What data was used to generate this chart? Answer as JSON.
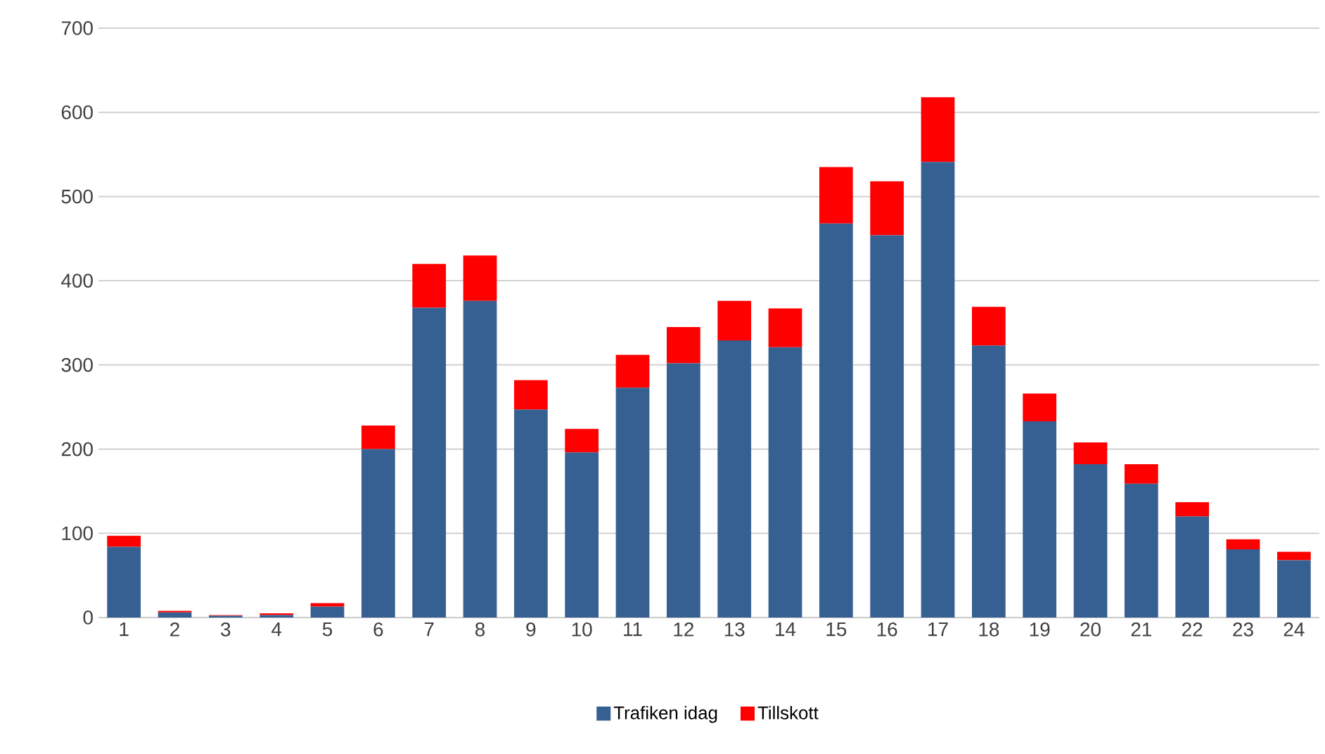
{
  "chart_data": {
    "type": "bar",
    "stacked": true,
    "categories": [
      "1",
      "2",
      "3",
      "4",
      "5",
      "6",
      "7",
      "8",
      "9",
      "10",
      "11",
      "12",
      "13",
      "14",
      "15",
      "16",
      "17",
      "18",
      "19",
      "20",
      "21",
      "22",
      "23",
      "24"
    ],
    "series": [
      {
        "name": "Trafiken idag",
        "color": "#376092",
        "values": [
          84,
          6,
          2,
          3,
          13,
          200,
          368,
          376,
          247,
          196,
          273,
          302,
          329,
          321,
          468,
          454,
          541,
          323,
          233,
          182,
          159,
          120,
          81,
          68
        ]
      },
      {
        "name": "Tillskott",
        "color": "#ff0000",
        "values": [
          13,
          2,
          1,
          2,
          4,
          28,
          52,
          54,
          35,
          28,
          39,
          43,
          47,
          46,
          67,
          64,
          77,
          46,
          33,
          26,
          23,
          17,
          12,
          10
        ]
      }
    ],
    "ylim": [
      0,
      700
    ],
    "yticks": [
      0,
      100,
      200,
      300,
      400,
      500,
      600,
      700
    ],
    "grid": "y",
    "legend": "bottom"
  }
}
